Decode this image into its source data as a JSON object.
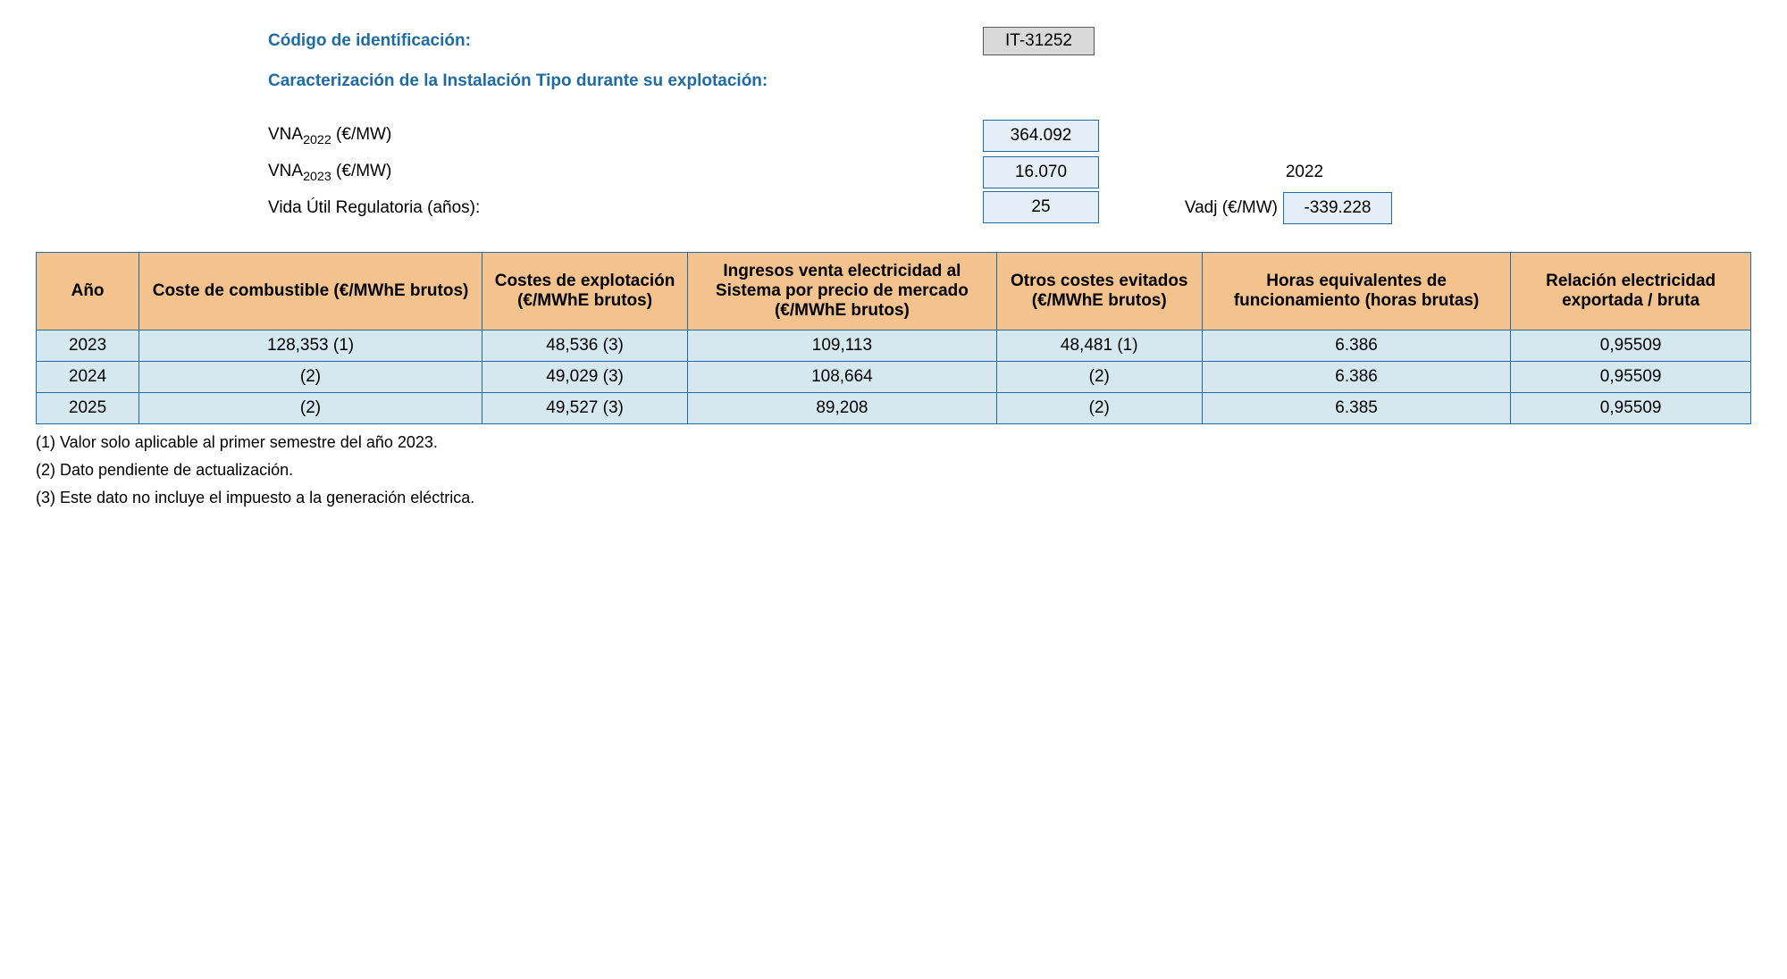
{
  "header": {
    "code_label": "Código de identificación:",
    "code_value": "IT-31252",
    "section_title": "Caracterización de la Instalación Tipo durante su explotación:"
  },
  "values": {
    "vna2022_label_prefix": "VNA",
    "vna2022_sub": "2022",
    "vna2022_unit": " (€/MW)",
    "vna2022_value": "364.092",
    "vna2023_label_prefix": "VNA",
    "vna2023_sub": "2023",
    "vna2023_unit": " (€/MW)",
    "vna2023_value": "16.070",
    "year_side": "2022",
    "vida_label": "Vida Útil Regulatoria (años):",
    "vida_value": "25",
    "vadj_label": "Vadj (€/MW)",
    "vadj_value": "-339.228"
  },
  "table": {
    "columns": [
      "Año",
      "Coste de combustible (€/MWhE brutos)",
      "Costes de explotación (€/MWhE brutos)",
      "Ingresos venta electricidad al Sistema por precio de mercado (€/MWhE brutos)",
      "Otros costes evitados (€/MWhE brutos)",
      "Horas equivalentes de funcionamiento (horas brutas)",
      "Relación electricidad exportada / bruta"
    ],
    "col_widths": [
      "6%",
      "20%",
      "12%",
      "18%",
      "12%",
      "18%",
      "14%"
    ],
    "rows": [
      [
        "2023",
        "128,353 (1)",
        "48,536 (3)",
        "109,113",
        "48,481 (1)",
        "6.386",
        "0,95509"
      ],
      [
        "2024",
        "(2)",
        "49,029 (3)",
        "108,664",
        "(2)",
        "6.386",
        "0,95509"
      ],
      [
        "2025",
        "(2)",
        "49,527 (3)",
        "89,208",
        "(2)",
        "6.385",
        "0,95509"
      ]
    ],
    "header_bg": "#f4c28c",
    "cell_bg": "#d6e8ef",
    "border_color": "#1f6ba5"
  },
  "footnotes": [
    "(1) Valor solo aplicable al primer semestre del año 2023.",
    "(2) Dato pendiente de actualización.",
    "(3) Este dato no incluye el impuesto a la generación eléctrica."
  ]
}
